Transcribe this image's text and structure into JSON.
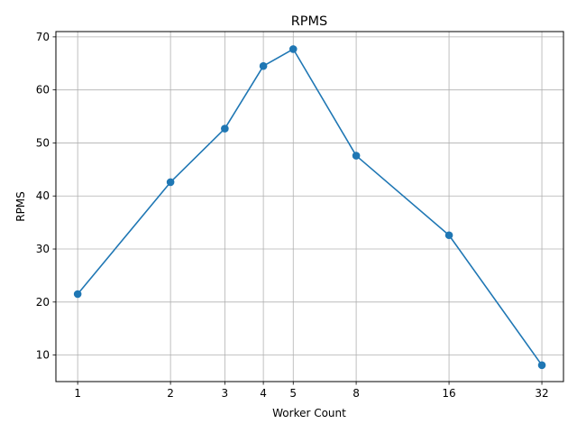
{
  "chart_data": {
    "type": "line",
    "title": "RPMS",
    "xlabel": "Worker Count",
    "ylabel": "RPMS",
    "x_scale": "log2",
    "grid": true,
    "xlim": [
      0.85,
      37.6
    ],
    "ylim": [
      5.0,
      71.0
    ],
    "x_ticks": [
      1,
      2,
      3,
      4,
      5,
      8,
      16,
      32
    ],
    "y_ticks": [
      10,
      20,
      30,
      40,
      50,
      60,
      70
    ],
    "series": [
      {
        "color": "#1f77b4",
        "marker": "circle",
        "x": [
          1,
          2,
          3,
          4,
          5,
          8,
          16,
          32
        ],
        "y": [
          21.5,
          42.6,
          52.7,
          64.5,
          67.7,
          47.6,
          32.6,
          8.1
        ]
      }
    ]
  }
}
